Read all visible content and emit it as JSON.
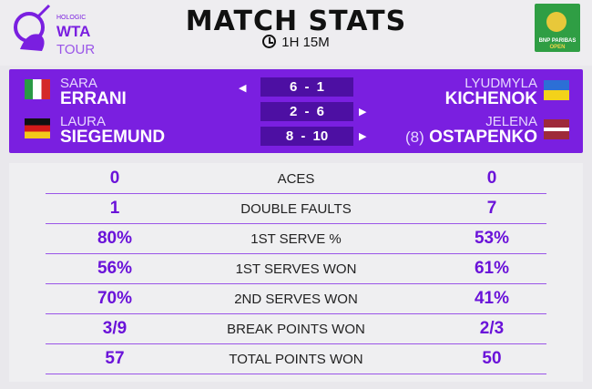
{
  "header": {
    "title": "MATCH STATS",
    "duration": "1H 15M",
    "logo_left_text": "HOLOGIC WTA TOUR",
    "logo_right_text": "BNP PARIBAS OPEN",
    "clock_icon": "clock-icon"
  },
  "colors": {
    "purple": "#7a1fe0",
    "dark_purple": "#4d0fa3",
    "stat_purple": "#6a12d9"
  },
  "team_left": [
    {
      "first": "SARA",
      "last": "ERRANI",
      "flag": "Italy"
    },
    {
      "first": "LAURA",
      "last": "SIEGEMUND",
      "flag": "Germany"
    }
  ],
  "team_right": [
    {
      "first": "LYUDMYLA",
      "last": "KICHENOK",
      "flag": "Ukraine"
    },
    {
      "first": "JELENA",
      "seed": "(8)",
      "last": "OSTAPENKO",
      "flag": "Latvia"
    }
  ],
  "sets": [
    {
      "score": "6 - 1",
      "winner": "left"
    },
    {
      "score": "2 - 6",
      "winner": "right"
    },
    {
      "score": "8 - 10",
      "winner": "right"
    }
  ],
  "stats": [
    {
      "label": "ACES",
      "left": "0",
      "right": "0"
    },
    {
      "label": "DOUBLE FAULTS",
      "left": "1",
      "right": "7"
    },
    {
      "label": "1ST SERVE %",
      "left": "80%",
      "right": "53%"
    },
    {
      "label": "1ST SERVES WON",
      "left": "56%",
      "right": "61%"
    },
    {
      "label": "2ND SERVES WON",
      "left": "70%",
      "right": "41%"
    },
    {
      "label": "BREAK POINTS WON",
      "left": "3/9",
      "right": "2/3"
    },
    {
      "label": "TOTAL POINTS WON",
      "left": "57",
      "right": "50"
    }
  ]
}
